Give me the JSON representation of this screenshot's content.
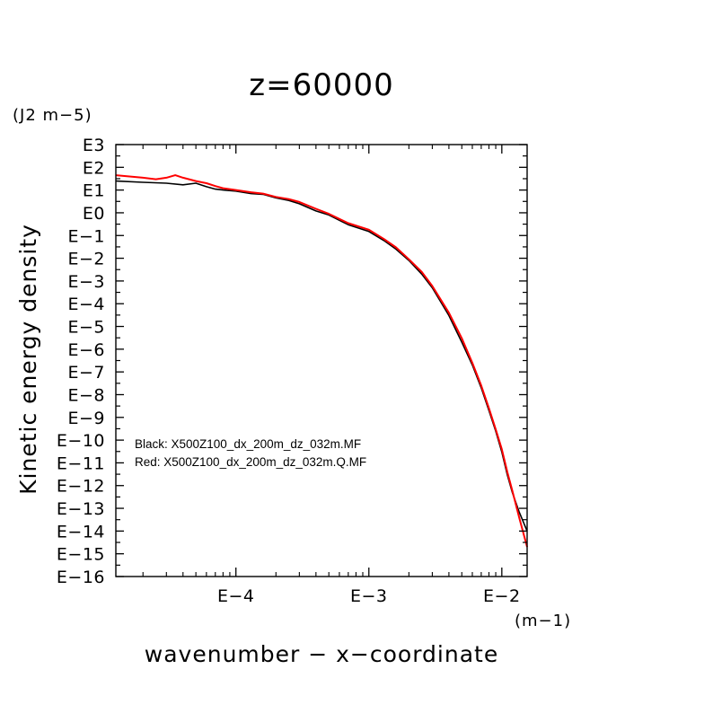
{
  "chart_data": {
    "type": "line",
    "title": "z=60000",
    "xlabel": "wavenumber − x−coordinate",
    "ylabel": "Kinetic energy density",
    "x_unit": "(m−1)",
    "y_unit": "(J2 m−5)",
    "x_scale": "log",
    "y_scale": "log",
    "xlim": [
      1.25e-05,
      0.0155
    ],
    "ylim": [
      1e-16,
      1000
    ],
    "x_ticks": [
      {
        "value": 0.0001,
        "label": "E−4"
      },
      {
        "value": 0.001,
        "label": "E−3"
      },
      {
        "value": 0.01,
        "label": "E−2"
      }
    ],
    "y_ticks": [
      {
        "value": 1000,
        "label": "E3"
      },
      {
        "value": 100,
        "label": "E2"
      },
      {
        "value": 10,
        "label": "E1"
      },
      {
        "value": 1,
        "label": "E0"
      },
      {
        "value": 0.1,
        "label": "E−1"
      },
      {
        "value": 0.01,
        "label": "E−2"
      },
      {
        "value": 0.001,
        "label": "E−3"
      },
      {
        "value": 0.0001,
        "label": "E−4"
      },
      {
        "value": 1e-05,
        "label": "E−5"
      },
      {
        "value": 1e-06,
        "label": "E−6"
      },
      {
        "value": 1e-07,
        "label": "E−7"
      },
      {
        "value": 1e-08,
        "label": "E−8"
      },
      {
        "value": 1e-09,
        "label": "E−9"
      },
      {
        "value": 1e-10,
        "label": "E−10"
      },
      {
        "value": 1e-11,
        "label": "E−11"
      },
      {
        "value": 1e-12,
        "label": "E−12"
      },
      {
        "value": 1e-13,
        "label": "E−13"
      },
      {
        "value": 1e-14,
        "label": "E−14"
      },
      {
        "value": 1e-15,
        "label": "E−15"
      },
      {
        "value": 1e-16,
        "label": "E−16"
      }
    ],
    "legend": [
      "Black: X500Z100_dx_200m_dz_032m.MF",
      "Red: X500Z100_dx_200m_dz_032m.Q.MF"
    ],
    "legend_position": "lower-left",
    "grid": false,
    "series": [
      {
        "color": "#000000",
        "x": [
          1.25e-05,
          2e-05,
          3e-05,
          4e-05,
          5e-05,
          6e-05,
          7e-05,
          8e-05,
          0.0001,
          0.00013,
          0.00016,
          0.0002,
          0.00025,
          0.0003,
          0.0004,
          0.0005,
          0.0007,
          0.001,
          0.0013,
          0.0016,
          0.002,
          0.0025,
          0.003,
          0.004,
          0.005,
          0.006,
          0.007,
          0.008,
          0.009,
          0.01,
          0.011,
          0.012,
          0.0135,
          0.0155
        ],
        "y": [
          25,
          22,
          20,
          17,
          20,
          14,
          11,
          10,
          9,
          7,
          6.5,
          4.5,
          3.5,
          2.5,
          1.2,
          0.8,
          0.3,
          0.15,
          0.06,
          0.025,
          0.008,
          0.002,
          0.0005,
          3e-05,
          2e-06,
          2e-07,
          2e-08,
          2e-09,
          2.5e-10,
          3e-11,
          3e-12,
          5e-13,
          7e-14,
          1e-14
        ]
      },
      {
        "color": "#ff0000",
        "x": [
          1.25e-05,
          2e-05,
          2.5e-05,
          3e-05,
          3.5e-05,
          4e-05,
          5e-05,
          6e-05,
          7e-05,
          8e-05,
          0.0001,
          0.00013,
          0.00016,
          0.0002,
          0.00025,
          0.0003,
          0.0004,
          0.0005,
          0.0007,
          0.001,
          0.0013,
          0.0016,
          0.002,
          0.0025,
          0.003,
          0.004,
          0.005,
          0.006,
          0.007,
          0.008,
          0.009,
          0.01,
          0.011,
          0.012,
          0.0135,
          0.0155
        ],
        "y": [
          45,
          35,
          30,
          35,
          45,
          35,
          25,
          20,
          15,
          12,
          10,
          8,
          7,
          5,
          4,
          3,
          1.5,
          0.9,
          0.35,
          0.18,
          0.07,
          0.03,
          0.009,
          0.0025,
          0.0006,
          4e-05,
          3e-06,
          2.5e-07,
          2.5e-08,
          2.5e-09,
          3e-10,
          4e-11,
          4e-12,
          6e-13,
          4e-14,
          2e-15
        ]
      }
    ]
  }
}
